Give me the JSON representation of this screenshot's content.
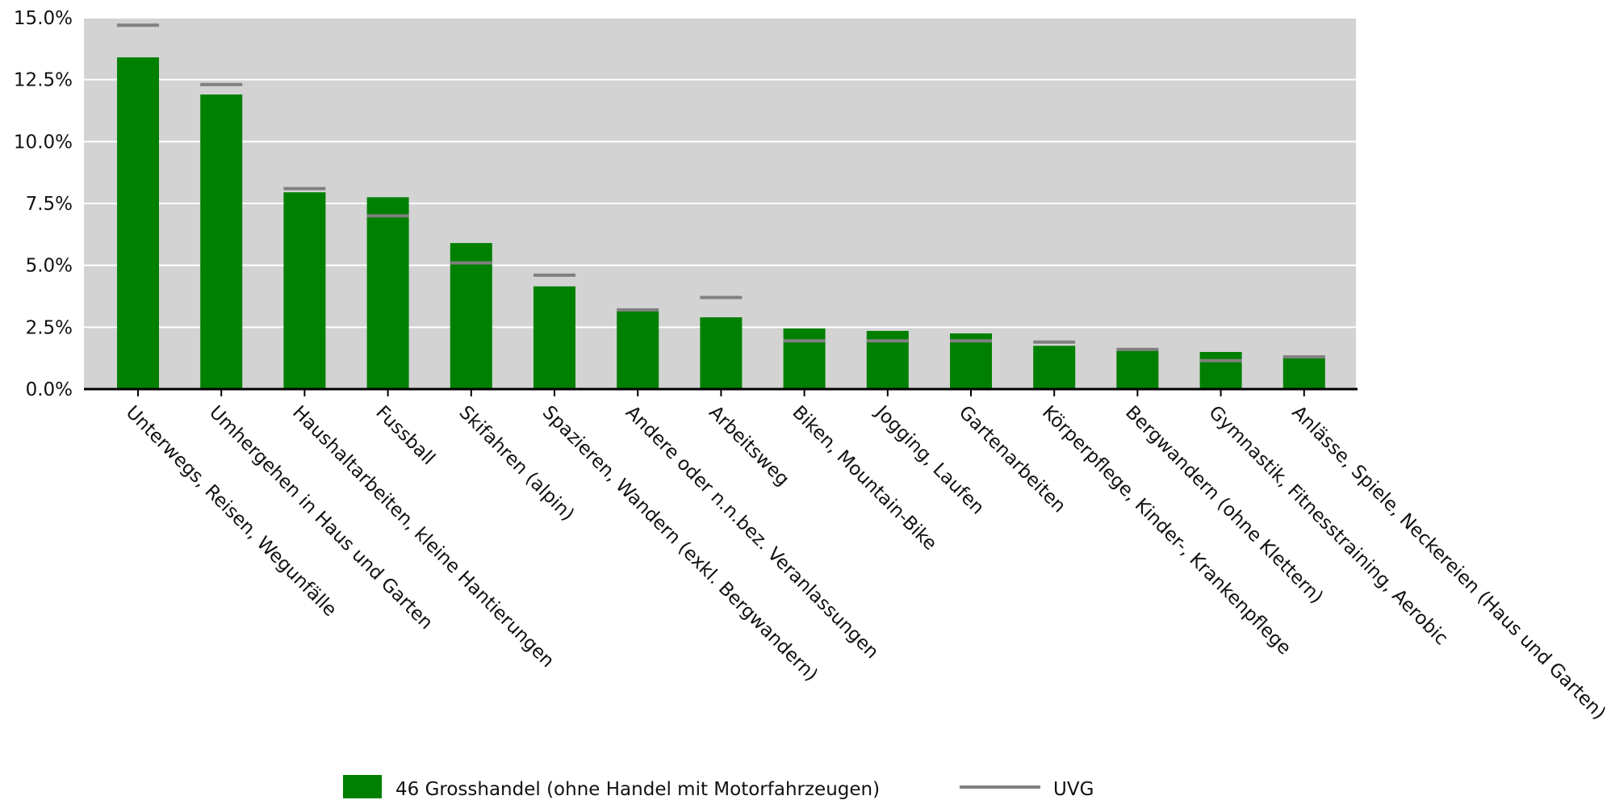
{
  "chart_data": {
    "type": "bar",
    "categories": [
      "Unterwegs, Reisen, Wegunfälle",
      "Umhergehen in Haus und Garten",
      "Haushaltarbeiten, kleine Hantierungen",
      "Fussball",
      "Skifahren (alpin)",
      "Spazieren, Wandern (exkl. Bergwandern)",
      "Andere oder n.n.bez. Veranlassungen",
      "Arbeitsweg",
      "Biken, Mountain-Bike",
      "Jogging, Laufen",
      "Gartenarbeiten",
      "Körperpflege, Kinder-, Krankenpflege",
      "Bergwandern (ohne Klettern)",
      "Gymnastik, Fitnesstraining, Aerobic",
      "Anlässe, Spiele, Neckereien (Haus und Garten)"
    ],
    "series": [
      {
        "name": "46 Grosshandel (ohne Handel mit Motorfahrzeugen)",
        "kind": "bar",
        "color": "#008000",
        "values": [
          13.4,
          11.9,
          7.95,
          7.75,
          5.9,
          4.15,
          3.15,
          2.9,
          2.45,
          2.35,
          2.25,
          1.75,
          1.55,
          1.5,
          1.3
        ]
      },
      {
        "name": "UVG",
        "kind": "marker",
        "color": "#808080",
        "values": [
          14.7,
          12.3,
          8.1,
          7.0,
          5.1,
          4.6,
          3.2,
          3.7,
          1.95,
          1.95,
          1.95,
          1.9,
          1.6,
          1.15,
          1.3
        ]
      }
    ],
    "y_ticks": [
      "0.0%",
      "2.5%",
      "5.0%",
      "7.5%",
      "10.0%",
      "12.5%",
      "15.0%"
    ],
    "ylim": [
      0,
      15
    ],
    "grid": true,
    "plot_background": "#d3d3d3",
    "legend_position": "bottom"
  }
}
